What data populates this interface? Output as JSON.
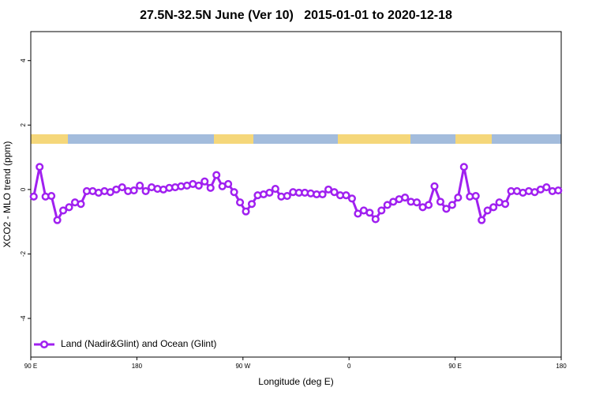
{
  "chart_data": {
    "type": "line",
    "title": "27.5N-32.5N June (Ver 10)   2015-01-01 to 2020-12-18",
    "x_label": "Longitude (deg E)",
    "y_label": "XCO2 - MLO trend (ppm)",
    "x": [
      92.5,
      97.5,
      102.5,
      107.5,
      112.5,
      117.5,
      122.5,
      127.5,
      132.5,
      137.5,
      142.5,
      147.5,
      152.5,
      157.5,
      162.5,
      167.5,
      172.5,
      177.5,
      182.5,
      187.5,
      192.5,
      197.5,
      202.5,
      207.5,
      212.5,
      217.5,
      222.5,
      227.5,
      232.5,
      237.5,
      242.5,
      247.5,
      252.5,
      257.5,
      262.5,
      267.5,
      272.5,
      277.5,
      282.5,
      287.5,
      292.5,
      297.5,
      302.5,
      307.5,
      312.5,
      317.5,
      322.5,
      327.5,
      332.5,
      337.5,
      342.5,
      347.5,
      352.5,
      357.5,
      362.5,
      367.5,
      372.5,
      377.5,
      382.5,
      387.5,
      392.5,
      397.5,
      402.5,
      407.5,
      412.5,
      417.5,
      422.5,
      427.5,
      432.5,
      437.5,
      442.5,
      447.5,
      452.5,
      457.5,
      462.5,
      467.5,
      472.5,
      477.5,
      482.5,
      487.5,
      492.5,
      497.5,
      502.5,
      507.5,
      512.5,
      517.5,
      522.5,
      527.5,
      532.5,
      537.5
    ],
    "series": [
      {
        "name": "Land (Nadir&Glint) and Ocean (Glint)",
        "color": "#a020f0",
        "values": [
          -0.22,
          0.7,
          -0.22,
          -0.2,
          -0.95,
          -0.65,
          -0.55,
          -0.4,
          -0.45,
          -0.05,
          -0.05,
          -0.1,
          -0.05,
          -0.08,
          0,
          0.07,
          -0.05,
          -0.03,
          0.12,
          -0.05,
          0.07,
          0.02,
          0,
          0.05,
          0.07,
          0.1,
          0.12,
          0.17,
          0.12,
          0.25,
          0.05,
          0.45,
          0.1,
          0.17,
          -0.08,
          -0.4,
          -0.68,
          -0.45,
          -0.18,
          -0.15,
          -0.1,
          0.02,
          -0.22,
          -0.2,
          -0.08,
          -0.1,
          -0.1,
          -0.12,
          -0.15,
          -0.15,
          0,
          -0.08,
          -0.18,
          -0.18,
          -0.28,
          -0.75,
          -0.65,
          -0.72,
          -0.92,
          -0.65,
          -0.48,
          -0.38,
          -0.3,
          -0.25,
          -0.38,
          -0.4,
          -0.55,
          -0.48,
          0.1,
          -0.38,
          -0.6,
          -0.48,
          -0.25,
          0.7,
          -0.22,
          -0.2,
          -0.95,
          -0.65,
          -0.55,
          -0.4,
          -0.45,
          -0.05,
          -0.05,
          -0.1,
          -0.05,
          -0.08,
          0,
          0.07,
          -0.05,
          -0.03
        ]
      }
    ],
    "xlim": [
      90,
      540
    ],
    "xticks": [
      {
        "value": 90,
        "label": "90 E"
      },
      180,
      {
        "value": 270,
        "label": "90 W"
      },
      {
        "value": 360,
        "label": "0"
      },
      {
        "value": 450,
        "label": "90 E"
      },
      {
        "value": 540,
        "label": "180"
      }
    ],
    "ylim": [
      -5.2,
      4.9
    ],
    "yticks": [
      -4,
      -2,
      0,
      2,
      4
    ],
    "legend": "bottomleft"
  }
}
